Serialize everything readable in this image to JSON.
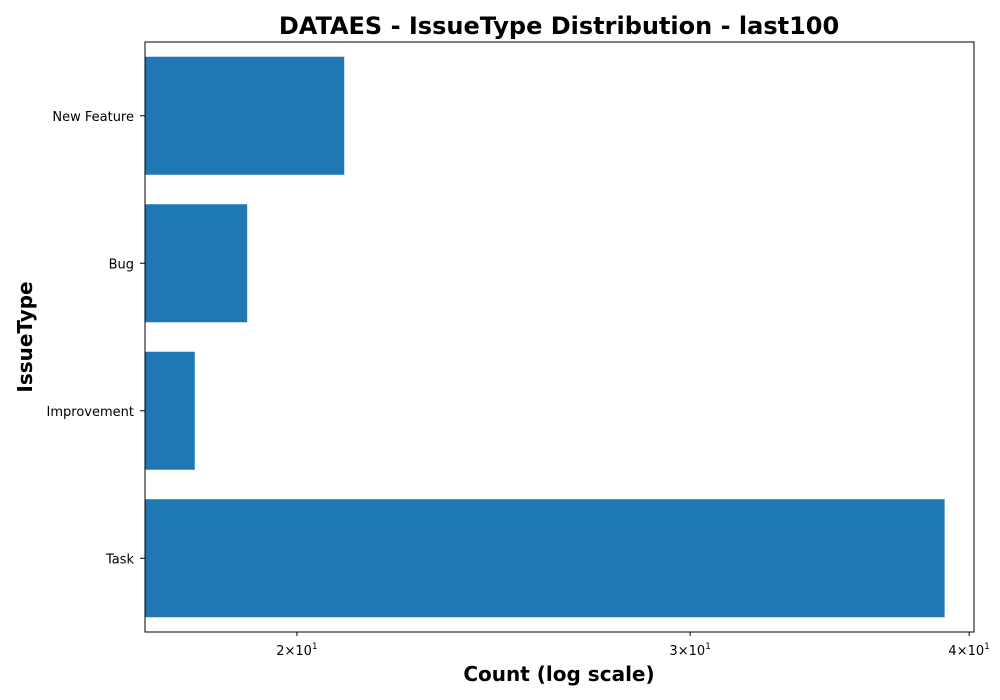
{
  "chart_data": {
    "type": "bar",
    "orientation": "horizontal",
    "title": "DATAES - IssueType Distribution - last100",
    "xlabel": "Count (log scale)",
    "ylabel": "IssueType",
    "x_scale": "log",
    "xlim": [
      17.1,
      40.2
    ],
    "categories": [
      "New Feature",
      "Bug",
      "Improvement",
      "Task"
    ],
    "values": [
      21,
      19,
      18,
      39
    ],
    "x_ticks": [
      {
        "value": 20,
        "mantissa": "2",
        "base": "10",
        "exp": "1"
      },
      {
        "value": 30,
        "mantissa": "3",
        "base": "10",
        "exp": "1"
      },
      {
        "value": 40,
        "mantissa": "4",
        "base": "10",
        "exp": "1"
      }
    ],
    "bar_color": "#1f77b4",
    "grid": false,
    "legend": "none"
  }
}
